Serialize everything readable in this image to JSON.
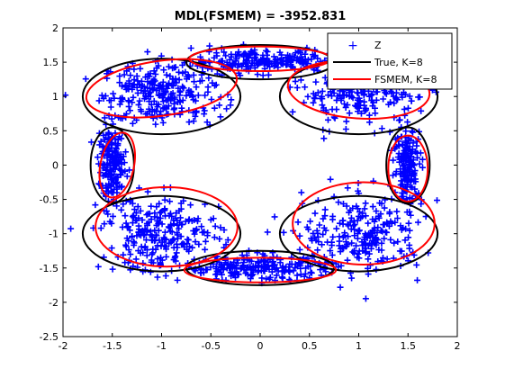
{
  "chart_data": {
    "type": "scatter",
    "title": "MDL(FSMEM) = -3952.831",
    "xlabel": "",
    "ylabel": "",
    "xlim": [
      -2,
      2
    ],
    "ylim": [
      -2.5,
      2
    ],
    "xticks": [
      "-2",
      "-1.5",
      "-1",
      "-0.5",
      "0",
      "0.5",
      "1",
      "1.5",
      "2"
    ],
    "yticks": [
      "-2.5",
      "-2",
      "-1.5",
      "-1",
      "-0.5",
      "0",
      "0.5",
      "1",
      "1.5",
      "2"
    ],
    "grid": false,
    "legend_position": "top-right",
    "series": [
      {
        "name": "Z",
        "marker": "+",
        "color": "#0000ff",
        "clusters": [
          {
            "cx": -1.0,
            "cy": 1.05,
            "sx": 0.3,
            "sy": 0.22,
            "n": 260
          },
          {
            "cx": 0.0,
            "cy": 1.52,
            "sx": 0.42,
            "sy": 0.08,
            "n": 220
          },
          {
            "cx": 1.0,
            "cy": 1.05,
            "sx": 0.3,
            "sy": 0.22,
            "n": 240
          },
          {
            "cx": 1.5,
            "cy": 0.0,
            "sx": 0.07,
            "sy": 0.28,
            "n": 170
          },
          {
            "cx": 1.05,
            "cy": -1.0,
            "sx": 0.3,
            "sy": 0.28,
            "n": 230
          },
          {
            "cx": 0.0,
            "cy": -1.5,
            "sx": 0.4,
            "sy": 0.09,
            "n": 220
          },
          {
            "cx": -1.0,
            "cy": -1.0,
            "sx": 0.3,
            "sy": 0.28,
            "n": 250
          },
          {
            "cx": -1.5,
            "cy": 0.0,
            "sx": 0.07,
            "sy": 0.28,
            "n": 180
          }
        ]
      },
      {
        "name": "True, K=8",
        "color": "#000000",
        "ellipses": [
          {
            "cx": -1.0,
            "cy": 1.0,
            "rx": 0.8,
            "ry": 0.55
          },
          {
            "cx": 0.0,
            "cy": 1.5,
            "rx": 0.75,
            "ry": 0.25
          },
          {
            "cx": 1.0,
            "cy": 1.0,
            "rx": 0.8,
            "ry": 0.55
          },
          {
            "cx": 1.5,
            "cy": 0.0,
            "rx": 0.22,
            "ry": 0.55
          },
          {
            "cx": 1.0,
            "cy": -1.0,
            "rx": 0.8,
            "ry": 0.55
          },
          {
            "cx": 0.0,
            "cy": -1.5,
            "rx": 0.75,
            "ry": 0.25
          },
          {
            "cx": -1.0,
            "cy": -1.0,
            "rx": 0.8,
            "ry": 0.55
          },
          {
            "cx": -1.5,
            "cy": 0.0,
            "rx": 0.22,
            "ry": 0.55
          }
        ]
      },
      {
        "name": "FSMEM, K=8",
        "color": "#ff0000",
        "ellipses": [
          {
            "cx": -1.0,
            "cy": 1.12,
            "rx": 0.77,
            "ry": 0.4,
            "rot": 8
          },
          {
            "cx": 0.0,
            "cy": 1.55,
            "rx": 0.72,
            "ry": 0.18
          },
          {
            "cx": 1.0,
            "cy": 1.1,
            "rx": 0.72,
            "ry": 0.42,
            "rot": -4
          },
          {
            "cx": 1.5,
            "cy": -0.05,
            "rx": 0.2,
            "ry": 0.48
          },
          {
            "cx": 1.05,
            "cy": -0.85,
            "rx": 0.72,
            "ry": 0.6
          },
          {
            "cx": 0.0,
            "cy": -1.53,
            "rx": 0.77,
            "ry": 0.18
          },
          {
            "cx": -0.95,
            "cy": -0.9,
            "rx": 0.72,
            "ry": 0.58
          },
          {
            "cx": -1.45,
            "cy": 0.0,
            "rx": 0.17,
            "ry": 0.48,
            "rot": -12
          }
        ]
      }
    ]
  }
}
